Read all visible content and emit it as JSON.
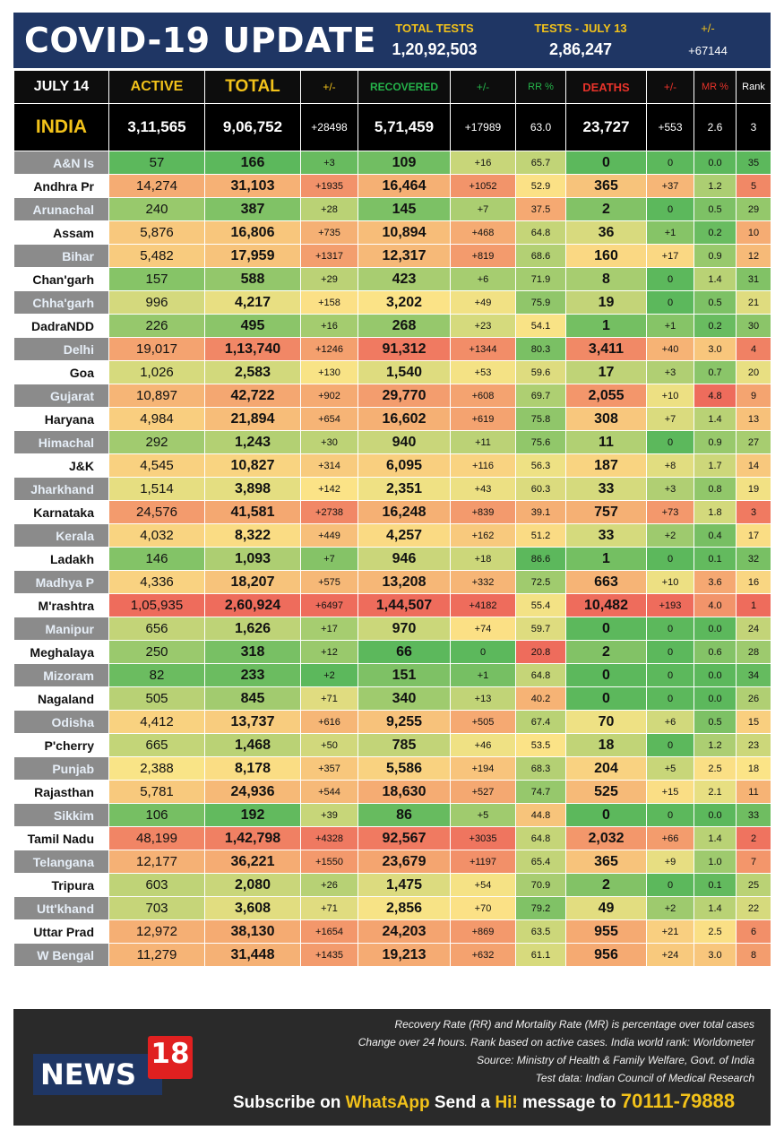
{
  "header": {
    "title": "COVID-19 UPDATE",
    "total_tests_label": "TOTAL TESTS",
    "total_tests_value": "1,20,92,503",
    "tests_day_label": "TESTS - JULY 13",
    "tests_day_value": "2,86,247",
    "change_label": "+/-",
    "change_value": "+67144"
  },
  "table": {
    "columns": [
      "JULY 14",
      "ACTIVE",
      "TOTAL",
      "+/-",
      "RECOVERED",
      "+/-",
      "RR %",
      "DEATHS",
      "+/-",
      "MR %",
      "Rank"
    ],
    "india": [
      "INDIA",
      "3,11,565",
      "9,06,752",
      "+28498",
      "5,71,459",
      "+17989",
      "63.0",
      "23,727",
      "+553",
      "2.6",
      "3"
    ],
    "rows": [
      [
        "A&N Is",
        "57",
        "166",
        "+3",
        "109",
        "+16",
        "65.7",
        "0",
        "0",
        "0.0",
        "35"
      ],
      [
        "Andhra Pr",
        "14,274",
        "31,103",
        "+1935",
        "16,464",
        "+1052",
        "52.9",
        "365",
        "+37",
        "1.2",
        "5"
      ],
      [
        "Arunachal",
        "240",
        "387",
        "+28",
        "145",
        "+7",
        "37.5",
        "2",
        "0",
        "0.5",
        "29"
      ],
      [
        "Assam",
        "5,876",
        "16,806",
        "+735",
        "10,894",
        "+468",
        "64.8",
        "36",
        "+1",
        "0.2",
        "10"
      ],
      [
        "Bihar",
        "5,482",
        "17,959",
        "+1317",
        "12,317",
        "+819",
        "68.6",
        "160",
        "+17",
        "0.9",
        "12"
      ],
      [
        "Chan'garh",
        "157",
        "588",
        "+29",
        "423",
        "+6",
        "71.9",
        "8",
        "0",
        "1.4",
        "31"
      ],
      [
        "Chha'garh",
        "996",
        "4,217",
        "+158",
        "3,202",
        "+49",
        "75.9",
        "19",
        "0",
        "0.5",
        "21"
      ],
      [
        "DadraNDD",
        "226",
        "495",
        "+16",
        "268",
        "+23",
        "54.1",
        "1",
        "+1",
        "0.2",
        "30"
      ],
      [
        "Delhi",
        "19,017",
        "1,13,740",
        "+1246",
        "91,312",
        "+1344",
        "80.3",
        "3,411",
        "+40",
        "3.0",
        "4"
      ],
      [
        "Goa",
        "1,026",
        "2,583",
        "+130",
        "1,540",
        "+53",
        "59.6",
        "17",
        "+3",
        "0.7",
        "20"
      ],
      [
        "Gujarat",
        "10,897",
        "42,722",
        "+902",
        "29,770",
        "+608",
        "69.7",
        "2,055",
        "+10",
        "4.8",
        "9"
      ],
      [
        "Haryana",
        "4,984",
        "21,894",
        "+654",
        "16,602",
        "+619",
        "75.8",
        "308",
        "+7",
        "1.4",
        "13"
      ],
      [
        "Himachal",
        "292",
        "1,243",
        "+30",
        "940",
        "+11",
        "75.6",
        "11",
        "0",
        "0.9",
        "27"
      ],
      [
        "J&K",
        "4,545",
        "10,827",
        "+314",
        "6,095",
        "+116",
        "56.3",
        "187",
        "+8",
        "1.7",
        "14"
      ],
      [
        "Jharkhand",
        "1,514",
        "3,898",
        "+142",
        "2,351",
        "+43",
        "60.3",
        "33",
        "+3",
        "0.8",
        "19"
      ],
      [
        "Karnataka",
        "24,576",
        "41,581",
        "+2738",
        "16,248",
        "+839",
        "39.1",
        "757",
        "+73",
        "1.8",
        "3"
      ],
      [
        "Kerala",
        "4,032",
        "8,322",
        "+449",
        "4,257",
        "+162",
        "51.2",
        "33",
        "+2",
        "0.4",
        "17"
      ],
      [
        "Ladakh",
        "146",
        "1,093",
        "+7",
        "946",
        "+18",
        "86.6",
        "1",
        "0",
        "0.1",
        "32"
      ],
      [
        "Madhya P",
        "4,336",
        "18,207",
        "+575",
        "13,208",
        "+332",
        "72.5",
        "663",
        "+10",
        "3.6",
        "16"
      ],
      [
        "M'rashtra",
        "1,05,935",
        "2,60,924",
        "+6497",
        "1,44,507",
        "+4182",
        "55.4",
        "10,482",
        "+193",
        "4.0",
        "1"
      ],
      [
        "Manipur",
        "656",
        "1,626",
        "+17",
        "970",
        "+74",
        "59.7",
        "0",
        "0",
        "0.0",
        "24"
      ],
      [
        "Meghalaya",
        "250",
        "318",
        "+12",
        "66",
        "0",
        "20.8",
        "2",
        "0",
        "0.6",
        "28"
      ],
      [
        "Mizoram",
        "82",
        "233",
        "+2",
        "151",
        "+1",
        "64.8",
        "0",
        "0",
        "0.0",
        "34"
      ],
      [
        "Nagaland",
        "505",
        "845",
        "+71",
        "340",
        "+13",
        "40.2",
        "0",
        "0",
        "0.0",
        "26"
      ],
      [
        "Odisha",
        "4,412",
        "13,737",
        "+616",
        "9,255",
        "+505",
        "67.4",
        "70",
        "+6",
        "0.5",
        "15"
      ],
      [
        "P'cherry",
        "665",
        "1,468",
        "+50",
        "785",
        "+46",
        "53.5",
        "18",
        "0",
        "1.2",
        "23"
      ],
      [
        "Punjab",
        "2,388",
        "8,178",
        "+357",
        "5,586",
        "+194",
        "68.3",
        "204",
        "+5",
        "2.5",
        "18"
      ],
      [
        "Rajasthan",
        "5,781",
        "24,936",
        "+544",
        "18,630",
        "+527",
        "74.7",
        "525",
        "+15",
        "2.1",
        "11"
      ],
      [
        "Sikkim",
        "106",
        "192",
        "+39",
        "86",
        "+5",
        "44.8",
        "0",
        "0",
        "0.0",
        "33"
      ],
      [
        "Tamil Nadu",
        "48,199",
        "1,42,798",
        "+4328",
        "92,567",
        "+3035",
        "64.8",
        "2,032",
        "+66",
        "1.4",
        "2"
      ],
      [
        "Telangana",
        "12,177",
        "36,221",
        "+1550",
        "23,679",
        "+1197",
        "65.4",
        "365",
        "+9",
        "1.0",
        "7"
      ],
      [
        "Tripura",
        "603",
        "2,080",
        "+26",
        "1,475",
        "+54",
        "70.9",
        "2",
        "0",
        "0.1",
        "25"
      ],
      [
        "Utt'khand",
        "703",
        "3,608",
        "+71",
        "2,856",
        "+70",
        "79.2",
        "49",
        "+2",
        "1.4",
        "22"
      ],
      [
        "Uttar Prad",
        "12,972",
        "38,130",
        "+1654",
        "24,203",
        "+869",
        "63.5",
        "955",
        "+21",
        "2.5",
        "6"
      ],
      [
        "W Bengal",
        "11,279",
        "31,448",
        "+1435",
        "19,213",
        "+632",
        "61.1",
        "956",
        "+24",
        "3.0",
        "8"
      ]
    ]
  },
  "footer": {
    "notes": [
      "Recovery Rate (RR) and Mortality Rate (MR) is percentage over total cases",
      "Change over 24 hours. Rank based on active cases. India world rank: Worldometer",
      "Source: Ministry of Health & Family Welfare, Govt. of India",
      "Test data: Indian Council of Medical Research"
    ],
    "logo_text": "NEWS",
    "logo_number": "18",
    "subscribe_1": "Subscribe on ",
    "subscribe_2": "WhatsApp",
    "subscribe_3": " Send a ",
    "subscribe_4": "Hi!",
    "subscribe_5": " message to ",
    "subscribe_6": "70111-79888"
  },
  "colors": {
    "header_bg": "#1f3664",
    "accent_yellow": "#f2c21a",
    "recovered_green": "#25b34a",
    "deaths_red": "#e8332a",
    "scale_green": "#5cb85c",
    "scale_yellow": "#fbe487",
    "scale_red": "#ee6c5c"
  }
}
